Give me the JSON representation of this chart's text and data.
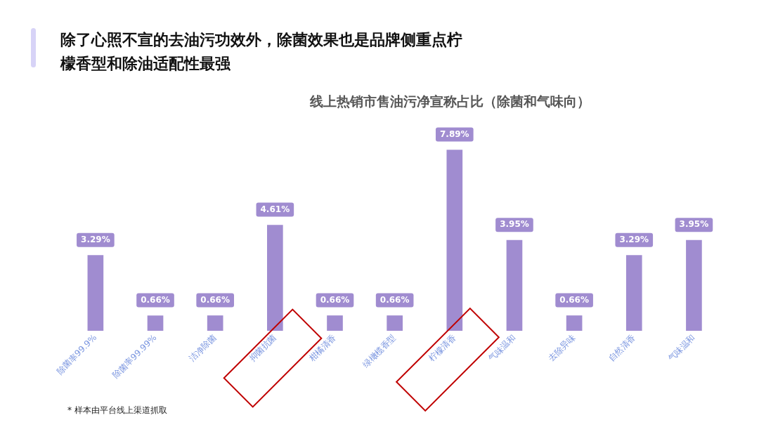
{
  "chart_data": {
    "type": "bar",
    "title": "除了心照不宣的去油污功效外，除菌效果也是品牌侧重点柠檬香型和除油适配性最强",
    "subtitle": "线上热销市售油污净宣称占比（除菌和气味向）",
    "categories": [
      "除菌率99.9%",
      "除菌率99.99%",
      "洁净除菌",
      "抑菌抗菌",
      "柑橘清香",
      "绿橄榄香型",
      "柠檬清香",
      "气味温和",
      "去除异味",
      "自然清香",
      "气味温和"
    ],
    "values": [
      3.29,
      0.66,
      0.66,
      4.61,
      0.66,
      0.66,
      7.89,
      3.95,
      0.66,
      3.29,
      3.95
    ],
    "value_labels": [
      "3.29%",
      "0.66%",
      "0.66%",
      "4.61%",
      "0.66%",
      "0.66%",
      "7.89%",
      "3.95%",
      "0.66%",
      "3.29%",
      "3.95%"
    ],
    "color": "#a08cd0",
    "grid": false,
    "legend": false,
    "tick_labels": "x",
    "annotations": [
      "* 样本由平台线上渠道抓取"
    ]
  }
}
